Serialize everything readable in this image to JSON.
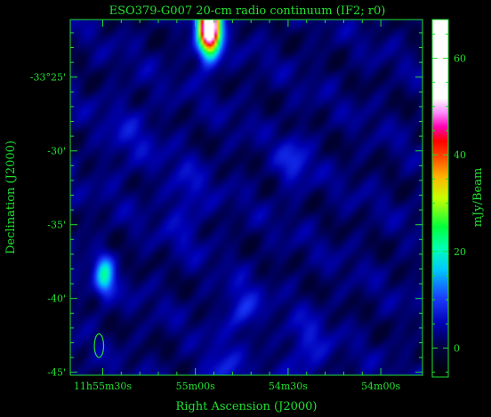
{
  "chart_data": {
    "type": "heatmap",
    "title": "ESO379-G007  20-cm radio continuum  (IF2; r0)",
    "xlabel": "Right Ascension (J2000)",
    "ylabel": "Declination (J2000)",
    "colorbar_label": "mJy/Beam",
    "x_ticks": [
      {
        "label": "11h55m30s",
        "pos": 0.0
      },
      {
        "label": "55m00s",
        "pos": 1.0
      },
      {
        "label": "54m30s",
        "pos": 2.0
      },
      {
        "label": "54m00s",
        "pos": 3.0
      }
    ],
    "y_ticks": [
      {
        "label": "-33°25'",
        "dec_arcmin": -25
      },
      {
        "label": "-30'",
        "dec_arcmin": -30
      },
      {
        "label": "-35'",
        "dec_arcmin": -35
      },
      {
        "label": "-40'",
        "dec_arcmin": -40
      },
      {
        "label": "-45'",
        "dec_arcmin": -45
      }
    ],
    "colorbar_ticks": [
      0,
      20,
      40,
      60
    ],
    "colorbar_range": [
      -6,
      68
    ],
    "dec_range_arcmin": [
      -45.2,
      -21.1
    ],
    "ra_range_ticks": [
      -0.35,
      3.45
    ],
    "background_level": 2,
    "sources": [
      {
        "ra": 1.15,
        "dec": -21.6,
        "peak": 65,
        "sx": 0.08,
        "sy": 1.3
      },
      {
        "ra": 0.02,
        "dec": -38.5,
        "peak": 17,
        "sx": 0.07,
        "sy": 1.0
      },
      {
        "ra": 2.05,
        "dec": -30.8,
        "peak": 6,
        "sx": 0.12,
        "sy": 1.2
      },
      {
        "ra": 1.5,
        "dec": -40.8,
        "peak": 7,
        "sx": 0.12,
        "sy": 1.1
      },
      {
        "ra": 1.25,
        "dec": -45.0,
        "peak": 6,
        "sx": 0.14,
        "sy": 1.0
      },
      {
        "ra": 0.9,
        "dec": -33.5,
        "peak": 4,
        "sx": 0.15,
        "sy": 2.0
      },
      {
        "ra": 2.2,
        "dec": -43.5,
        "peak": 5,
        "sx": 0.15,
        "sy": 1.5
      },
      {
        "ra": 0.3,
        "dec": -29.0,
        "peak": 3,
        "sx": 0.2,
        "sy": 2.0
      }
    ],
    "beam": {
      "ra": -0.04,
      "dec": -43.2,
      "rx": 0.05,
      "ry": 0.8
    }
  }
}
